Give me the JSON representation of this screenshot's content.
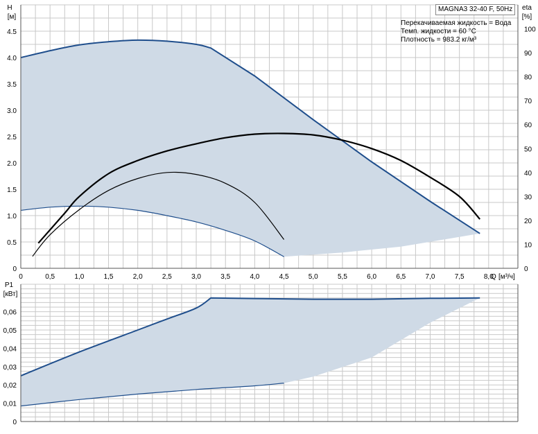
{
  "info": {
    "model": "MAGNA3 32-40 F, 50Hz",
    "lines": [
      "Перекачиваемая жидкость = Вода",
      "Темп. жидкости = 60 °C",
      "Плотность = 983.2 кг/м³"
    ]
  },
  "colors": {
    "grid": "#c8c8c8",
    "area_fill": "#cfdae6",
    "area_edge": "#1f4e8c",
    "efficiency_curve": "#000000"
  },
  "chart_data": [
    {
      "type": "area",
      "name": "head-chart",
      "ylabel": "H",
      "yunit": "[м]",
      "y2label": "eta",
      "y2unit": "[%]",
      "xlabel": "Q",
      "xunit": "[м³/ч]",
      "xlim": [
        0,
        8.5
      ],
      "ylim": [
        0,
        5.0
      ],
      "y2lim": [
        0,
        110
      ],
      "grid": true,
      "x_ticks": [
        "0",
        "0,5",
        "1,0",
        "1,5",
        "2,0",
        "2,5",
        "3,0",
        "3,5",
        "4,0",
        "4,5",
        "5,0",
        "5,5",
        "6,0",
        "6,5",
        "7,0",
        "7,5",
        "8,0"
      ],
      "x_tick_values": [
        0,
        0.5,
        1.0,
        1.5,
        2.0,
        2.5,
        3.0,
        3.5,
        4.0,
        4.5,
        5.0,
        5.5,
        6.0,
        6.5,
        7.0,
        7.5,
        8.0
      ],
      "y_ticks": [
        "0",
        "0.5",
        "1.0",
        "1.5",
        "2.0",
        "2.5",
        "3.0",
        "3.5",
        "4.0",
        "4.5"
      ],
      "y_tick_values": [
        0,
        0.5,
        1.0,
        1.5,
        2.0,
        2.5,
        3.0,
        3.5,
        4.0,
        4.5
      ],
      "y2_ticks": [
        "0",
        "10",
        "20",
        "30",
        "40",
        "50",
        "60",
        "70",
        "80",
        "90",
        "100"
      ],
      "y2_tick_values": [
        0,
        10,
        20,
        30,
        40,
        50,
        60,
        70,
        80,
        90,
        100
      ],
      "operating_range": {
        "upper_head": [
          [
            0,
            4.0
          ],
          [
            0.5,
            4.13
          ],
          [
            1.0,
            4.24
          ],
          [
            1.5,
            4.3
          ],
          [
            2.0,
            4.33
          ],
          [
            2.5,
            4.31
          ],
          [
            3.0,
            4.25
          ],
          [
            3.25,
            4.18
          ],
          [
            4.0,
            3.65
          ],
          [
            5.0,
            2.82
          ],
          [
            6.0,
            2.02
          ],
          [
            7.0,
            1.27
          ],
          [
            7.85,
            0.66
          ]
        ],
        "lower_head": [
          [
            0,
            1.1
          ],
          [
            0.5,
            1.16
          ],
          [
            1.0,
            1.18
          ],
          [
            1.5,
            1.16
          ],
          [
            2.0,
            1.1
          ],
          [
            2.5,
            1.0
          ],
          [
            3.0,
            0.88
          ],
          [
            3.5,
            0.72
          ],
          [
            4.0,
            0.52
          ],
          [
            4.5,
            0.22
          ]
        ],
        "right_edge": [
          [
            4.5,
            0.22
          ],
          [
            5.5,
            0.3
          ],
          [
            6.5,
            0.41
          ],
          [
            7.85,
            0.66
          ]
        ]
      },
      "series": [
        {
          "name": "",
          "axis": "y2",
          "style": "thick",
          "points": [
            [
              0.3,
              10.5
            ],
            [
              0.75,
              23
            ],
            [
              1.0,
              30
            ],
            [
              1.5,
              39.5
            ],
            [
              2.0,
              45
            ],
            [
              2.5,
              49
            ],
            [
              3.0,
              52
            ],
            [
              3.5,
              54.5
            ],
            [
              4.0,
              56
            ],
            [
              4.5,
              56.3
            ],
            [
              5.0,
              55.7
            ],
            [
              5.5,
              53.5
            ],
            [
              6.0,
              50
            ],
            [
              6.5,
              45
            ],
            [
              7.0,
              38
            ],
            [
              7.5,
              30
            ],
            [
              7.85,
              20.5
            ]
          ]
        },
        {
          "name": "",
          "axis": "y2",
          "style": "thin",
          "points": [
            [
              0.2,
              5
            ],
            [
              0.5,
              14
            ],
            [
              1.0,
              24.5
            ],
            [
              1.5,
              32.5
            ],
            [
              2.0,
              37.5
            ],
            [
              2.5,
              40
            ],
            [
              3.0,
              39.2
            ],
            [
              3.5,
              35.5
            ],
            [
              4.0,
              27.5
            ],
            [
              4.5,
              12
            ]
          ]
        }
      ]
    },
    {
      "type": "area",
      "name": "power-chart",
      "ylabel": "P1",
      "yunit": "[кВт]",
      "xlim": [
        0,
        8.5
      ],
      "ylim": [
        0,
        0.075
      ],
      "grid": true,
      "y_ticks": [
        "0",
        "0,01",
        "0,02",
        "0,03",
        "0,04",
        "0,05",
        "0,06"
      ],
      "y_tick_values": [
        0,
        0.01,
        0.02,
        0.03,
        0.04,
        0.05,
        0.06
      ],
      "operating_range": {
        "upper_power": [
          [
            0,
            0.025
          ],
          [
            1.0,
            0.038
          ],
          [
            2.0,
            0.05
          ],
          [
            2.5,
            0.056
          ],
          [
            3.0,
            0.062
          ],
          [
            3.25,
            0.0675
          ],
          [
            4.0,
            0.0672
          ],
          [
            5.0,
            0.0668
          ],
          [
            6.0,
            0.0668
          ],
          [
            7.0,
            0.0673
          ],
          [
            7.85,
            0.0675
          ]
        ],
        "lower_power": [
          [
            0,
            0.0085
          ],
          [
            1.0,
            0.012
          ],
          [
            2.0,
            0.015
          ],
          [
            3.0,
            0.0175
          ],
          [
            4.0,
            0.0195
          ],
          [
            4.5,
            0.021
          ]
        ],
        "right_edge": [
          [
            4.5,
            0.021
          ],
          [
            5.0,
            0.0245
          ],
          [
            6.0,
            0.035
          ],
          [
            7.0,
            0.054
          ],
          [
            7.85,
            0.0675
          ]
        ]
      }
    }
  ]
}
